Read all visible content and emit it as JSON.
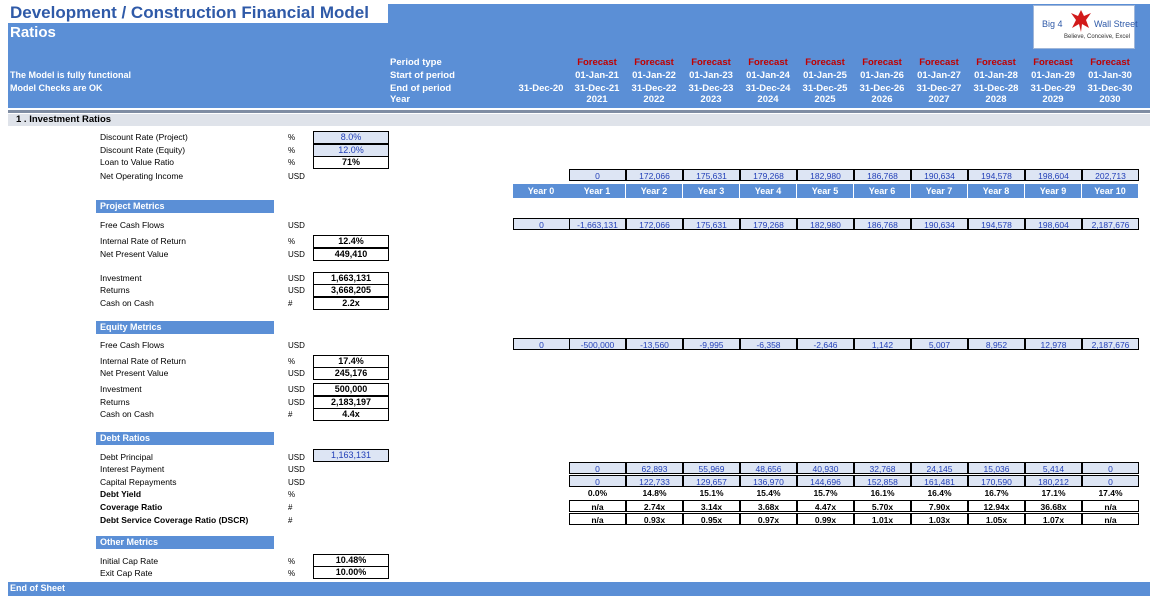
{
  "header": {
    "title": "Development / Construction Financial Model",
    "subtitle": "Ratios",
    "status_lines": [
      "The Model is fully functional",
      "Model Checks are OK"
    ],
    "row_labels": [
      "Period type",
      "Start of period",
      "End of period",
      "Year"
    ],
    "base_end": "31-Dec-20",
    "periods": [
      {
        "type": "Forecast",
        "start": "01-Jan-21",
        "end": "31-Dec-21",
        "year": "2021"
      },
      {
        "type": "Forecast",
        "start": "01-Jan-22",
        "end": "31-Dec-22",
        "year": "2022"
      },
      {
        "type": "Forecast",
        "start": "01-Jan-23",
        "end": "31-Dec-23",
        "year": "2023"
      },
      {
        "type": "Forecast",
        "start": "01-Jan-24",
        "end": "31-Dec-24",
        "year": "2024"
      },
      {
        "type": "Forecast",
        "start": "01-Jan-25",
        "end": "31-Dec-25",
        "year": "2025"
      },
      {
        "type": "Forecast",
        "start": "01-Jan-26",
        "end": "31-Dec-26",
        "year": "2026"
      },
      {
        "type": "Forecast",
        "start": "01-Jan-27",
        "end": "31-Dec-27",
        "year": "2027"
      },
      {
        "type": "Forecast",
        "start": "01-Jan-28",
        "end": "31-Dec-28",
        "year": "2028"
      },
      {
        "type": "Forecast",
        "start": "01-Jan-29",
        "end": "31-Dec-29",
        "year": "2029"
      },
      {
        "type": "Forecast",
        "start": "01-Jan-30",
        "end": "31-Dec-30",
        "year": "2030"
      }
    ]
  },
  "logo": {
    "text_left": "Big 4",
    "text_right": "Wall Street",
    "tagline": "Believe, Conceive, Excel"
  },
  "section_title": "1 .  Investment Ratios",
  "year_labels": [
    "Year 0",
    "Year 1",
    "Year 2",
    "Year 3",
    "Year 4",
    "Year 5",
    "Year 6",
    "Year 7",
    "Year 8",
    "Year 9",
    "Year 10"
  ],
  "assumptions": [
    {
      "label": "Discount Rate (Project)",
      "unit": "%",
      "value": "8.0%",
      "kind": "input"
    },
    {
      "label": "Discount Rate (Equity)",
      "unit": "%",
      "value": "12.0%",
      "kind": "input"
    },
    {
      "label": "Loan to Value Ratio",
      "unit": "%",
      "value": "71%",
      "kind": "calc"
    }
  ],
  "noi": {
    "label": "Net Operating Income",
    "unit": "USD",
    "values": [
      "0",
      "172,066",
      "175,631",
      "179,268",
      "182,980",
      "186,768",
      "190,634",
      "194,578",
      "198,604",
      "202,713"
    ]
  },
  "project": {
    "header": "Project Metrics",
    "fcf": {
      "label": "Free Cash Flows",
      "unit": "USD",
      "values": [
        "0",
        "-1,663,131",
        "172,066",
        "175,631",
        "179,268",
        "182,980",
        "186,768",
        "190,634",
        "194,578",
        "198,604",
        "2,187,676"
      ]
    },
    "metrics": [
      {
        "label": "Internal Rate of Return",
        "unit": "%",
        "value": "12.4%"
      },
      {
        "label": "Net Present Value",
        "unit": "USD",
        "value": "449,410"
      },
      {
        "label": "Investment",
        "unit": "USD",
        "value": "1,663,131"
      },
      {
        "label": "Returns",
        "unit": "USD",
        "value": "3,668,205"
      },
      {
        "label": "Cash on Cash",
        "unit": "#",
        "value": "2.2x"
      }
    ]
  },
  "equity": {
    "header": "Equity Metrics",
    "fcf": {
      "label": "Free Cash Flows",
      "unit": "USD",
      "values": [
        "0",
        "-500,000",
        "-13,560",
        "-9,995",
        "-6,358",
        "-2,646",
        "1,142",
        "5,007",
        "8,952",
        "12,978",
        "2,187,676"
      ]
    },
    "metrics": [
      {
        "label": "Internal Rate of Return",
        "unit": "%",
        "value": "17.4%"
      },
      {
        "label": "Net Present Value",
        "unit": "USD",
        "value": "245,176"
      },
      {
        "label": "Investment",
        "unit": "USD",
        "value": "500,000"
      },
      {
        "label": "Returns",
        "unit": "USD",
        "value": "2,183,197"
      },
      {
        "label": "Cash on Cash",
        "unit": "#",
        "value": "4.4x"
      }
    ]
  },
  "debt": {
    "header": "Debt Ratios",
    "principal": {
      "label": "Debt Principal",
      "unit": "USD",
      "value": "1,163,131"
    },
    "rows": [
      {
        "label": "Interest Payment",
        "unit": "USD",
        "kind": "input",
        "values": [
          "0",
          "62,893",
          "55,969",
          "48,656",
          "40,930",
          "32,768",
          "24,145",
          "15,036",
          "5,414",
          "0"
        ]
      },
      {
        "label": "Capital Repayments",
        "unit": "USD",
        "kind": "input",
        "values": [
          "0",
          "122,733",
          "129,657",
          "136,970",
          "144,696",
          "152,858",
          "161,481",
          "170,590",
          "180,212",
          "0"
        ]
      },
      {
        "label": "Debt Yield",
        "unit": "%",
        "kind": "plain",
        "values": [
          "0.0%",
          "14.8%",
          "15.1%",
          "15.4%",
          "15.7%",
          "16.1%",
          "16.4%",
          "16.7%",
          "17.1%",
          "17.4%"
        ]
      },
      {
        "label": "Coverage Ratio",
        "unit": "#",
        "kind": "calc",
        "values": [
          "n/a",
          "2.74x",
          "3.14x",
          "3.68x",
          "4.47x",
          "5.70x",
          "7.90x",
          "12.94x",
          "36.68x",
          "n/a"
        ]
      },
      {
        "label": "Debt Service Coverage Ratio (DSCR)",
        "unit": "#",
        "kind": "calc",
        "values": [
          "n/a",
          "0.93x",
          "0.95x",
          "0.97x",
          "0.99x",
          "1.01x",
          "1.03x",
          "1.05x",
          "1.07x",
          "n/a"
        ]
      }
    ]
  },
  "other": {
    "header": "Other Metrics",
    "metrics": [
      {
        "label": "Initial Cap Rate",
        "unit": "%",
        "value": "10.48%"
      },
      {
        "label": "Exit Cap Rate",
        "unit": "%",
        "value": "10.00%"
      }
    ]
  },
  "footer": "End of Sheet",
  "colors": {
    "header_blue": "#5b8fd6",
    "title_blue": "#2f5aa8",
    "forecast_red": "#c00000",
    "input_fill": "#dde5f4",
    "input_text": "#2340b8"
  }
}
